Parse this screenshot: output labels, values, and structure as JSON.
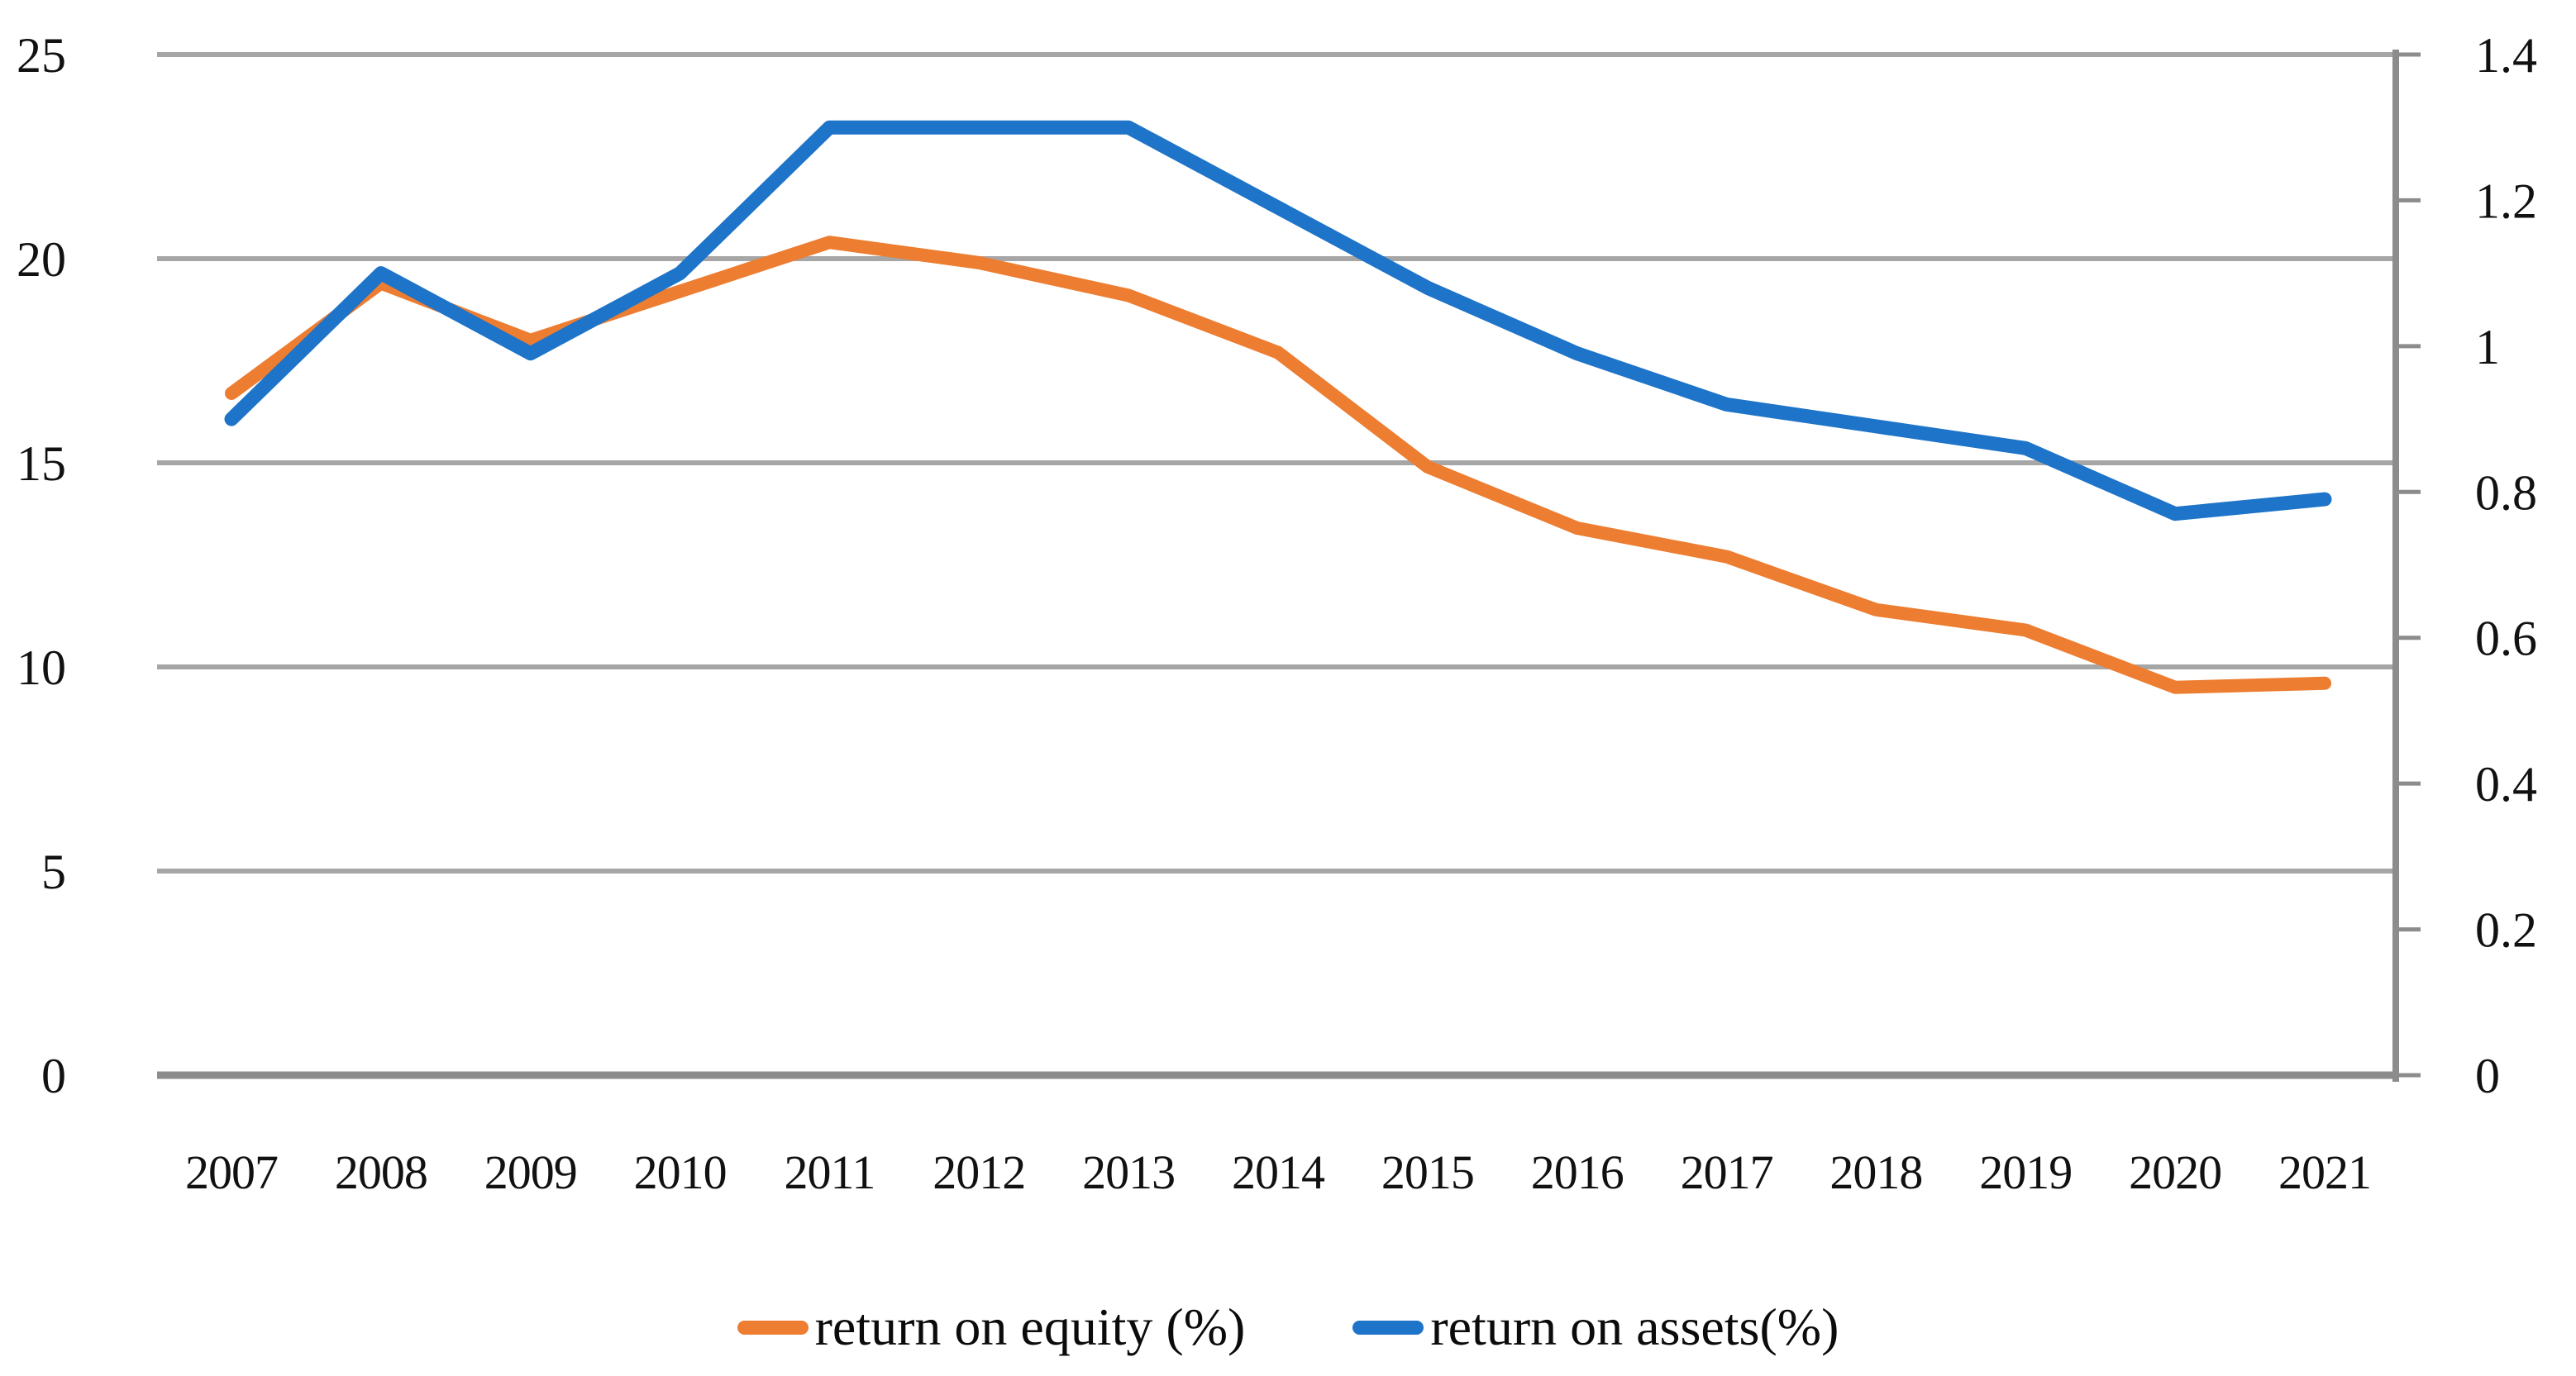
{
  "figure": {
    "kind": "dual-axis line chart figure",
    "background": "#ffffff"
  },
  "colors": {
    "series_equity": "#ED7D31",
    "series_assets": "#1E74C8",
    "gridline": "#A6A6A6",
    "axis_line": "#8C8C8C",
    "text": "#111111"
  },
  "chart_data": {
    "type": "line",
    "title": "",
    "xlabel": "",
    "ylabel_left": "",
    "ylabel_right": "",
    "grid": true,
    "legend_position": "bottom",
    "categories": [
      "2007",
      "2008",
      "2009",
      "2010",
      "2011",
      "2012",
      "2013",
      "2014",
      "2015",
      "2016",
      "2017",
      "2018",
      "2019",
      "2020",
      "2021"
    ],
    "series": [
      {
        "name": "return on equity (%)",
        "axis": "left",
        "color": "#ED7D31",
        "stroke_width": 16,
        "values": [
          16.7,
          19.4,
          18.0,
          19.2,
          20.4,
          19.9,
          19.1,
          17.7,
          14.9,
          13.4,
          12.7,
          11.4,
          10.9,
          9.5,
          9.6
        ]
      },
      {
        "name": "return on assets(%)",
        "axis": "right",
        "color": "#1E74C8",
        "stroke_width": 17,
        "values": [
          0.9,
          1.1,
          0.99,
          1.1,
          1.3,
          1.3,
          1.3,
          1.19,
          1.08,
          0.99,
          0.92,
          0.89,
          0.86,
          0.77,
          0.79
        ]
      }
    ],
    "left_axis": {
      "min": 0,
      "max": 25,
      "step": 5,
      "tick_labels": [
        "0",
        "5",
        "10",
        "15",
        "20",
        "25"
      ]
    },
    "right_axis": {
      "min": 0,
      "max": 1.4,
      "step": 0.2,
      "tick_labels": [
        "0",
        "0.2",
        "0.4",
        "0.6",
        "0.8",
        "1",
        "1.2",
        "1.4"
      ]
    }
  },
  "legend": {
    "items": [
      {
        "label": "return on equity (%)",
        "color": "#ED7D31"
      },
      {
        "label": "return on assets(%)",
        "color": "#1E74C8"
      }
    ]
  }
}
